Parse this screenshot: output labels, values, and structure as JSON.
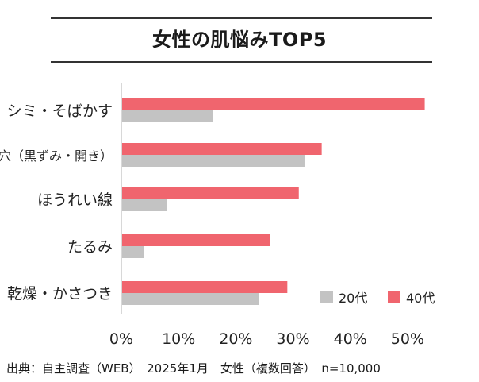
{
  "header": {
    "title": "女性の肌悩みTOP5"
  },
  "footnote": "出典：自主調査（WEB）　2025年1月　女性（複数回答）　n=10,000",
  "colors": {
    "series_20s": "#c3c3c3",
    "series_40s": "#f0656e",
    "axis": "#bdbdbd",
    "text": "#222222"
  },
  "chart_data": {
    "type": "bar",
    "orientation": "horizontal",
    "title": "女性の肌悩みTOP5",
    "categories": [
      "シミ・そばかす",
      "毛穴（黒ずみ・開き）",
      "ほうれい線",
      "たるみ",
      "乾燥・かさつき"
    ],
    "series": [
      {
        "name": "40代",
        "values": [
          53,
          35,
          31,
          26,
          29
        ]
      },
      {
        "name": "20代",
        "values": [
          16,
          32,
          8,
          4,
          24
        ]
      }
    ],
    "xlim": [
      0,
      55
    ],
    "xticks": [
      "0%",
      "10%",
      "20%",
      "30%",
      "40%",
      "50%"
    ],
    "xtick_values": [
      0,
      10,
      20,
      30,
      40,
      50
    ],
    "xlabel": "",
    "ylabel": "",
    "legend": {
      "position": "bottom-right",
      "entries": [
        "20代",
        "40代"
      ]
    },
    "grid": false
  }
}
